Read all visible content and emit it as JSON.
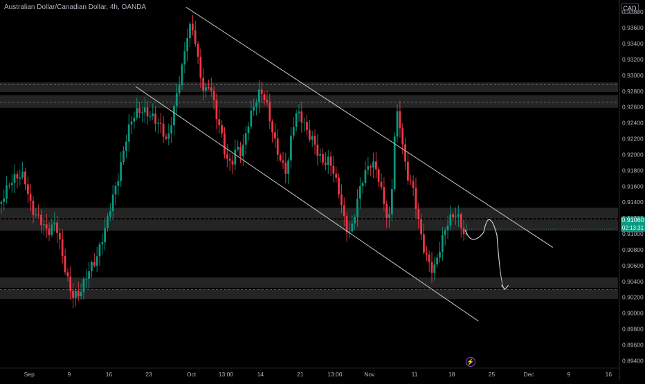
{
  "header": {
    "title": "Australian Dollar/Canadian Dollar, 4h, OANDA",
    "currency": "CAD"
  },
  "price_badge": {
    "price": "0.91060",
    "countdown": "02:13:31"
  },
  "colors": {
    "background": "#000000",
    "up_candle": "#089981",
    "down_candle": "#f23645",
    "zone_fill": "#2a2a2a",
    "channel_line": "#bdbdbd",
    "projection": "#d0d0d0",
    "axis_text": "#b2b5be"
  },
  "chart_data": {
    "type": "candlestick",
    "title": "Australian Dollar/Canadian Dollar, 4h, OANDA",
    "price_axis": {
      "unit": "CAD",
      "ylim": [
        0.8915,
        0.9395
      ],
      "ticks": [
        "0.93800",
        "0.93600",
        "0.93400",
        "0.93200",
        "0.93000",
        "0.92800",
        "0.92600",
        "0.92400",
        "0.92200",
        "0.92000",
        "0.91800",
        "0.91600",
        "0.91400",
        "0.91200",
        "0.91000",
        "0.90800",
        "0.90600",
        "0.90400",
        "0.90200",
        "0.90000",
        "0.89800",
        "0.89600",
        "0.89400",
        "0.89200"
      ]
    },
    "time_axis": {
      "ticks": [
        {
          "label": "Sep",
          "bar": 11
        },
        {
          "label": "9",
          "bar": 26
        },
        {
          "label": "16",
          "bar": 41
        },
        {
          "label": "23",
          "bar": 56
        },
        {
          "label": "Oct",
          "bar": 72
        },
        {
          "label": "13:00",
          "bar": 85
        },
        {
          "label": "14",
          "bar": 98
        },
        {
          "label": "21",
          "bar": 113
        },
        {
          "label": "13:00",
          "bar": 126
        },
        {
          "label": "Nov",
          "bar": 139
        },
        {
          "label": "11",
          "bar": 156
        },
        {
          "label": "18",
          "bar": 170
        },
        {
          "label": "25",
          "bar": 185
        },
        {
          "label": "Dec",
          "bar": 199
        },
        {
          "label": "9",
          "bar": 214
        },
        {
          "label": "16",
          "bar": 229
        }
      ]
    },
    "price_path": [
      [
        0,
        0.9138
      ],
      [
        3,
        0.9152
      ],
      [
        6,
        0.9165
      ],
      [
        9,
        0.9178
      ],
      [
        12,
        0.914
      ],
      [
        15,
        0.912
      ],
      [
        18,
        0.9092
      ],
      [
        21,
        0.9108
      ],
      [
        24,
        0.9068
      ],
      [
        27,
        0.9032
      ],
      [
        30,
        0.9025
      ],
      [
        33,
        0.9042
      ],
      [
        36,
        0.906
      ],
      [
        39,
        0.9105
      ],
      [
        42,
        0.915
      ],
      [
        45,
        0.9178
      ],
      [
        48,
        0.922
      ],
      [
        51,
        0.9248
      ],
      [
        54,
        0.9262
      ],
      [
        57,
        0.9258
      ],
      [
        60,
        0.9238
      ],
      [
        63,
        0.9205
      ],
      [
        66,
        0.9262
      ],
      [
        69,
        0.9325
      ],
      [
        71,
        0.9372
      ],
      [
        73,
        0.9362
      ],
      [
        75,
        0.9305
      ],
      [
        77,
        0.9268
      ],
      [
        79,
        0.9282
      ],
      [
        81,
        0.925
      ],
      [
        83,
        0.9235
      ],
      [
        85,
        0.9205
      ],
      [
        87,
        0.9195
      ],
      [
        89,
        0.9212
      ],
      [
        91,
        0.9195
      ],
      [
        93,
        0.9225
      ],
      [
        96,
        0.9262
      ],
      [
        98,
        0.9285
      ],
      [
        100,
        0.9278
      ],
      [
        102,
        0.9245
      ],
      [
        104,
        0.921
      ],
      [
        106,
        0.9182
      ],
      [
        108,
        0.9168
      ],
      [
        110,
        0.9228
      ],
      [
        112,
        0.9256
      ],
      [
        114,
        0.925
      ],
      [
        116,
        0.9235
      ],
      [
        118,
        0.9222
      ],
      [
        120,
        0.9195
      ],
      [
        122,
        0.918
      ],
      [
        124,
        0.9185
      ],
      [
        126,
        0.917
      ],
      [
        128,
        0.9152
      ],
      [
        130,
        0.9118
      ],
      [
        132,
        0.9108
      ],
      [
        134,
        0.9135
      ],
      [
        136,
        0.9158
      ],
      [
        138,
        0.9172
      ],
      [
        140,
        0.9185
      ],
      [
        142,
        0.918
      ],
      [
        144,
        0.9155
      ],
      [
        146,
        0.9125
      ],
      [
        147,
        0.913
      ],
      [
        148,
        0.9198
      ],
      [
        149,
        0.9255
      ],
      [
        150,
        0.924
      ],
      [
        151,
        0.9222
      ],
      [
        152,
        0.919
      ],
      [
        153,
        0.9165
      ],
      [
        155,
        0.9158
      ],
      [
        157,
        0.913
      ],
      [
        159,
        0.9095
      ],
      [
        161,
        0.9075
      ],
      [
        163,
        0.9055
      ],
      [
        164,
        0.9062
      ],
      [
        166,
        0.908
      ],
      [
        168,
        0.9102
      ],
      [
        170,
        0.9118
      ],
      [
        172,
        0.9128
      ],
      [
        174,
        0.9115
      ],
      [
        175,
        0.9105
      ]
    ],
    "zones": [
      {
        "from": 0.9279,
        "to": 0.9291
      },
      {
        "from": 0.9259,
        "to": 0.9275
      },
      {
        "from": 0.912,
        "to": 0.9133
      },
      {
        "from": 0.9104,
        "to": 0.9118
      },
      {
        "from": 0.9032,
        "to": 0.9045
      },
      {
        "from": 0.9018,
        "to": 0.903
      }
    ],
    "level_lines": [
      0.9288,
      0.9266,
      0.9119,
      0.903
    ],
    "channel": {
      "upper": [
        [
          70,
          0.9386
        ],
        [
          208,
          0.9083
        ]
      ],
      "lower": [
        [
          51,
          0.9286
        ],
        [
          180,
          0.899
        ]
      ]
    },
    "projection_path": [
      [
        175,
        0.9105
      ],
      [
        178,
        0.9093
      ],
      [
        182,
        0.9102
      ],
      [
        184,
        0.9118
      ],
      [
        187,
        0.9098
      ],
      [
        190,
        0.903
      ]
    ],
    "last_price": 0.9106,
    "last_bar": 175,
    "total_bars": 233
  }
}
